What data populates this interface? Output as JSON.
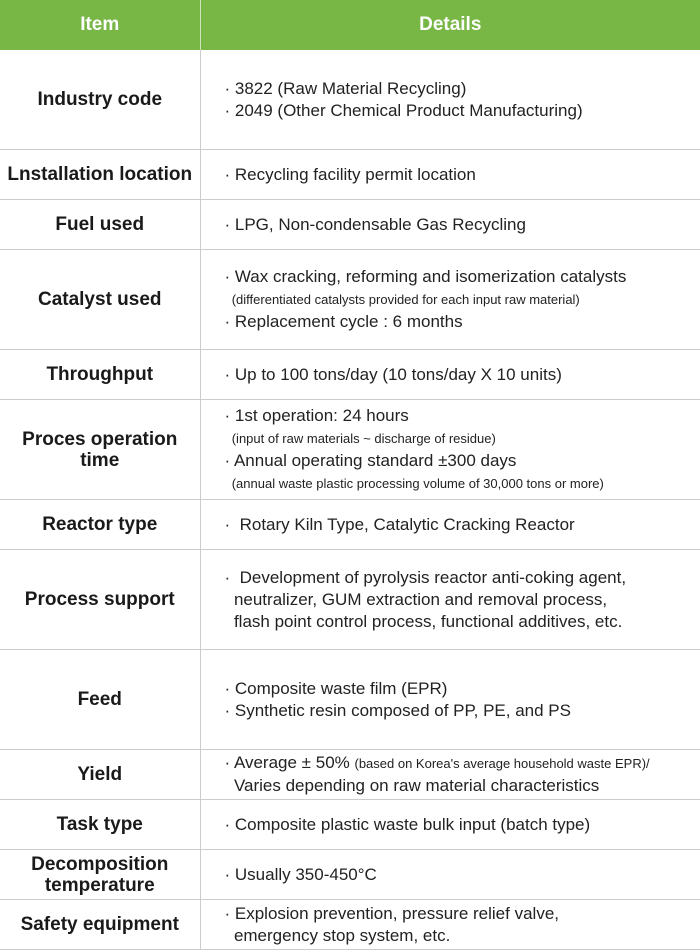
{
  "header": {
    "item": "Item",
    "details": "Details"
  },
  "accent_color": "#78b746",
  "rows": [
    {
      "item": "Industry code",
      "tall": true,
      "lines": [
        [
          {
            "t": "· 3822 (Raw Material Recycling)"
          }
        ],
        [
          {
            "t": "· 2049 (Other Chemical Product Manufacturing)"
          }
        ]
      ]
    },
    {
      "item": "Lnstallation location",
      "lines": [
        [
          {
            "t": "· Recycling facility permit location"
          }
        ]
      ]
    },
    {
      "item": "Fuel used",
      "lines": [
        [
          {
            "t": "· LPG, Non-condensable Gas Recycling"
          }
        ]
      ]
    },
    {
      "item": "Catalyst used",
      "tall": true,
      "lines": [
        [
          {
            "t": "· Wax cracking, reforming and isomerization catalysts"
          }
        ],
        [
          {
            "t": "  (differentiated catalysts provided for each input raw material)",
            "s": true
          }
        ],
        [
          {
            "t": "· Replacement cycle : 6 months"
          }
        ]
      ]
    },
    {
      "item": "Throughput",
      "lines": [
        [
          {
            "t": "· Up to 100 tons/day (10 tons/day X 10 units)"
          }
        ]
      ]
    },
    {
      "item": "Proces operation time",
      "tall": true,
      "lines": [
        [
          {
            "t": "· 1st operation: 24 hours"
          }
        ],
        [
          {
            "t": "  (input of raw materials ~ discharge of residue)",
            "s": true
          }
        ],
        [
          {
            "t": "· Annual operating standard ±300 days"
          }
        ],
        [
          {
            "t": "  (annual waste plastic processing volume of 30,000 tons or more)",
            "s": true
          }
        ]
      ]
    },
    {
      "item": "Reactor type",
      "lines": [
        [
          {
            "t": "·  Rotary Kiln Type, Catalytic Cracking Reactor"
          }
        ]
      ]
    },
    {
      "item": "Process support",
      "tall": true,
      "lines": [
        [
          {
            "t": "·  Development of pyrolysis reactor anti-coking agent,"
          }
        ],
        [
          {
            "t": "  neutralizer, GUM extraction and removal process,"
          }
        ],
        [
          {
            "t": "  flash point control process, functional additives, etc."
          }
        ]
      ]
    },
    {
      "item": "Feed",
      "tall": true,
      "lines": [
        [
          {
            "t": "· Composite waste film (EPR)"
          }
        ],
        [
          {
            "t": "· Synthetic resin composed of PP, PE, and PS"
          }
        ]
      ]
    },
    {
      "item": "Yield",
      "lines": [
        [
          {
            "t": "· Average ± 50% "
          },
          {
            "t": "(based on Korea's average household waste EPR)/",
            "s": true
          }
        ],
        [
          {
            "t": "  Varies depending on raw material characteristics"
          }
        ]
      ]
    },
    {
      "item": "Task type",
      "lines": [
        [
          {
            "t": "· Composite plastic waste bulk input (batch type)"
          }
        ]
      ]
    },
    {
      "item": "Decomposition temperature",
      "lines": [
        [
          {
            "t": "· Usually 350-450°C"
          }
        ]
      ]
    },
    {
      "item": "Safety equipment",
      "lines": [
        [
          {
            "t": "· Explosion prevention, pressure relief valve,"
          }
        ],
        [
          {
            "t": "  emergency stop system, etc."
          }
        ]
      ]
    }
  ]
}
